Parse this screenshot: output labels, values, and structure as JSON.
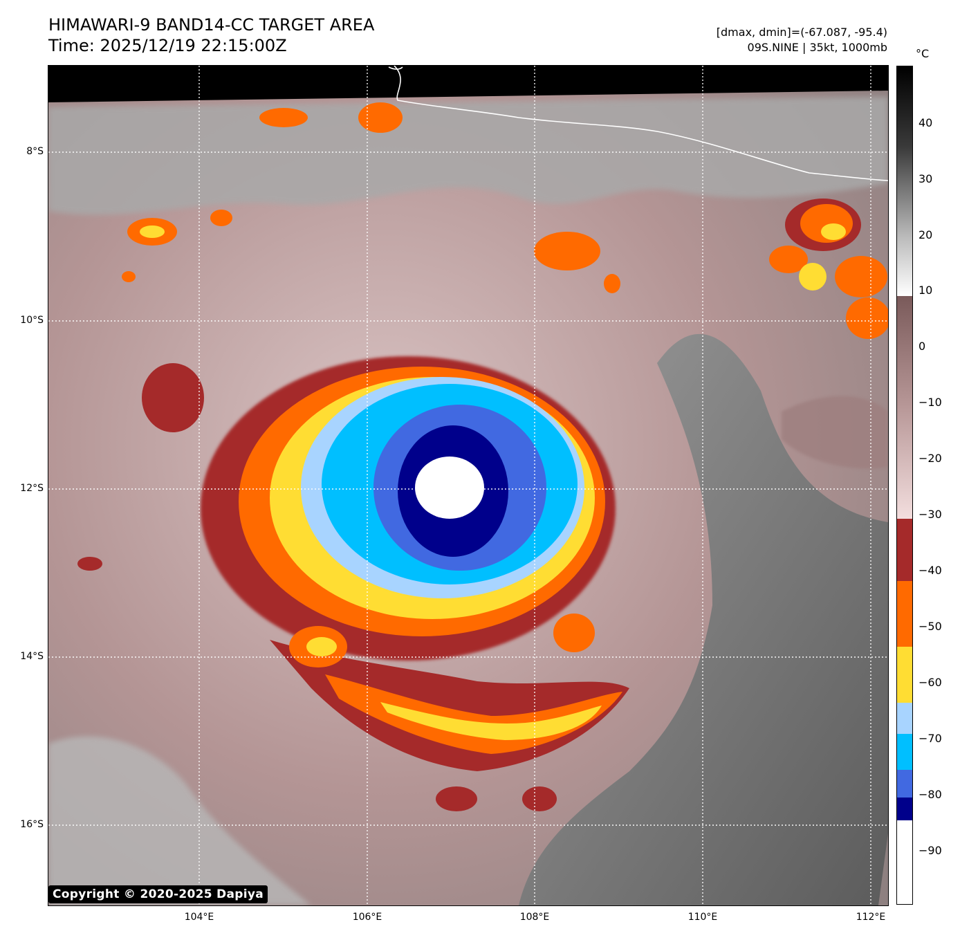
{
  "header": {
    "title": "HIMAWARI-9 BAND14-CC TARGET AREA",
    "time": "Time: 2025/12/19 22:15:00Z",
    "dminmax": "[dmax, dmin]=(-67.087, -95.4)",
    "storm": "09S.NINE | 35kt, 1000mb"
  },
  "axes": {
    "lat_labels": [
      "8°S",
      "10°S",
      "12°S",
      "14°S",
      "16°S"
    ],
    "lon_labels": [
      "104°E",
      "106°E",
      "108°E",
      "110°E",
      "112°E"
    ]
  },
  "colorbar": {
    "unit": "°C",
    "labels": [
      "40",
      "30",
      "20",
      "10",
      "0",
      "−10",
      "−20",
      "−30",
      "−40",
      "−50",
      "−60",
      "−70",
      "−80",
      "−90"
    ],
    "colors": {
      "warm_top": "#000000",
      "warm_bottom": "#ffffff",
      "mid_top": "#7a5a5a",
      "mid_bottom": "#f3dede",
      "band_m30": "#a52a2a",
      "band_m40": "#ff6a00",
      "band_m50": "#ffdd33",
      "band_m60": "#a8d4ff",
      "band_m70": "#00bfff",
      "band_m80": "#4169e1",
      "band_m85": "#00008b",
      "band_m90": "#ffffff"
    }
  },
  "copyright": "Copyright © 2020-2025 Dapiya"
}
